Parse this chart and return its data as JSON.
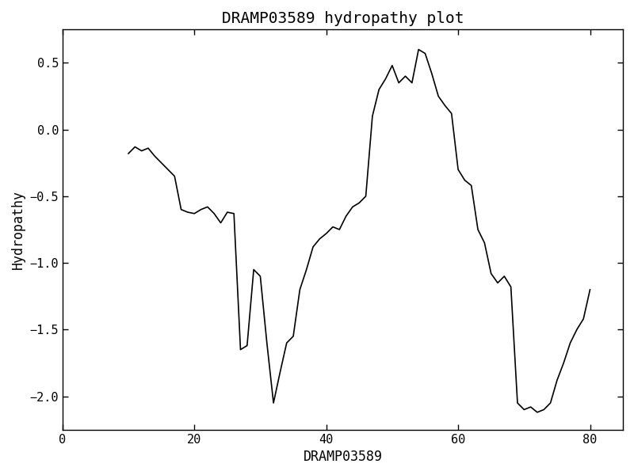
{
  "title": "DRAMP03589 hydropathy plot",
  "xlabel": "DRAMP03589",
  "ylabel": "Hydropathy",
  "xlim": [
    0,
    85
  ],
  "ylim": [
    -2.25,
    0.75
  ],
  "xticks": [
    0,
    20,
    40,
    60,
    80
  ],
  "yticks": [
    -2.0,
    -1.5,
    -1.0,
    -0.5,
    0.0,
    0.5
  ],
  "line_color": "#000000",
  "line_width": 1.2,
  "background_color": "#ffffff",
  "title_fontsize": 14,
  "label_fontsize": 12,
  "tick_fontsize": 11,
  "x": [
    10,
    11,
    12,
    13,
    14,
    15,
    16,
    17,
    18,
    19,
    20,
    21,
    22,
    23,
    24,
    25,
    26,
    27,
    28,
    29,
    30,
    31,
    32,
    33,
    34,
    35,
    36,
    37,
    38,
    39,
    40,
    41,
    42,
    43,
    44,
    45,
    46,
    47,
    48,
    49,
    50,
    51,
    52,
    53,
    54,
    55,
    56,
    57,
    58,
    59,
    60,
    61,
    62,
    63,
    64,
    65,
    66,
    67,
    68,
    69,
    70,
    71,
    72,
    73,
    74,
    75,
    76,
    77,
    78,
    79,
    80
  ],
  "y": [
    -0.18,
    -0.13,
    -0.16,
    -0.14,
    -0.2,
    -0.25,
    -0.3,
    -0.35,
    -0.6,
    -0.62,
    -0.63,
    -0.6,
    -0.58,
    -0.63,
    -0.7,
    -0.62,
    -0.63,
    -1.65,
    -1.62,
    -1.05,
    -1.1,
    -1.6,
    -2.05,
    -1.82,
    -1.6,
    -1.55,
    -1.2,
    -1.05,
    -0.88,
    -0.82,
    -0.78,
    -0.73,
    -0.75,
    -0.65,
    -0.58,
    -0.55,
    -0.5,
    0.1,
    0.3,
    0.38,
    0.48,
    0.35,
    0.4,
    0.35,
    0.6,
    0.57,
    0.42,
    0.25,
    0.18,
    0.12,
    -0.3,
    -0.38,
    -0.42,
    -0.75,
    -0.85,
    -1.08,
    -1.15,
    -1.1,
    -1.18,
    -2.05,
    -2.1,
    -2.08,
    -2.12,
    -2.1,
    -2.05,
    -1.88,
    -1.75,
    -1.6,
    -1.5,
    -1.42,
    -1.2
  ]
}
